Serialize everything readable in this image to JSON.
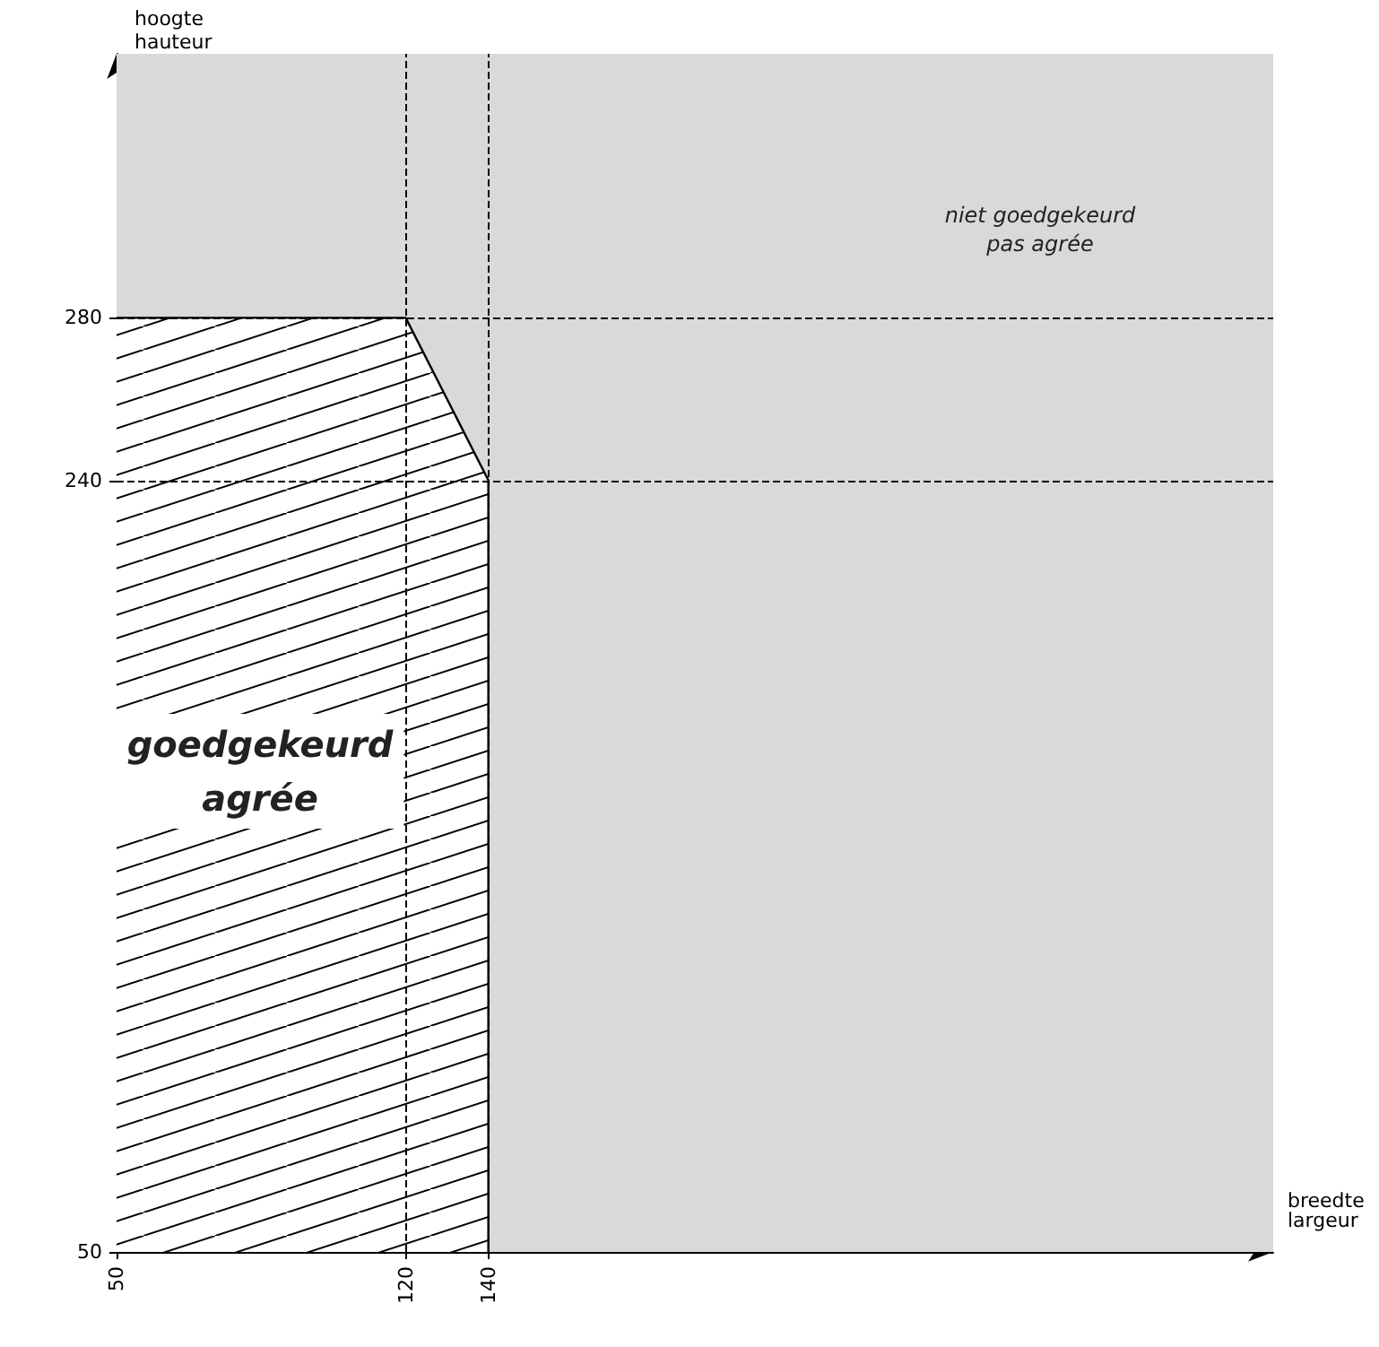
{
  "chart_data": {
    "type": "area",
    "xlabel": "breedte\nlargeur",
    "ylabel": "hoogte\nhauteur",
    "series": [
      {
        "color": "#000000",
        "x": [
          50,
          120,
          140,
          140
        ],
        "values": [
          280,
          280,
          240,
          50
        ]
      }
    ],
    "xlim": [
      50,
      330
    ],
    "ylim": [
      50,
      345
    ],
    "xticks": [
      50,
      120,
      140
    ],
    "yticks": [
      50,
      240,
      280
    ],
    "ref_lines": [
      {
        "axis": "x",
        "value": 120,
        "line_style": "dashed"
      },
      {
        "axis": "x",
        "value": 140,
        "line_style": "dashed"
      },
      {
        "axis": "y",
        "value": 240,
        "line_style": "dashed"
      },
      {
        "axis": "y",
        "value": 280,
        "line_style": "dashed"
      }
    ],
    "bands": [
      {
        "axis": "x",
        "from": 50,
        "to": 330,
        "color": "#d9d9d9"
      }
    ],
    "annotations": [
      "goedgekeurd\nagrée",
      "niet goedgekeurd\npas agrée"
    ],
    "marker": "none",
    "line_style": "solid"
  }
}
